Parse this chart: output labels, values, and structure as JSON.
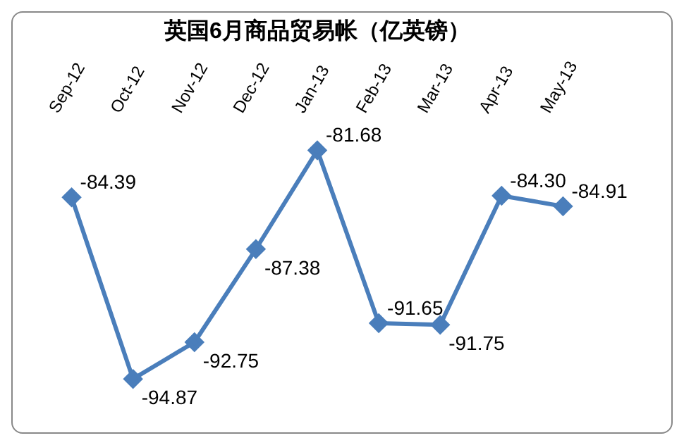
{
  "chart_data": {
    "type": "line",
    "title": "英国6月商品贸易帐（亿英镑）",
    "categories": [
      "Sep-12",
      "Oct-12",
      "Nov-12",
      "Dec-12",
      "Jan-13",
      "Feb-13",
      "Mar-13",
      "Apr-13",
      "May-13"
    ],
    "series": [
      {
        "color": "#4a7ebb",
        "values": [
          -84.39,
          -94.87,
          -92.75,
          -87.38,
          -81.68,
          -91.65,
          -91.75,
          -84.3,
          -84.91
        ],
        "value_labels": [
          "-84.39",
          "-94.87",
          "-92.75",
          "-87.38",
          "-81.68",
          "-91.65",
          "-91.75",
          "-84.30",
          "-84.91"
        ]
      }
    ],
    "marker": "diamond",
    "tick_labels": "x",
    "grid": false,
    "legend": false
  }
}
